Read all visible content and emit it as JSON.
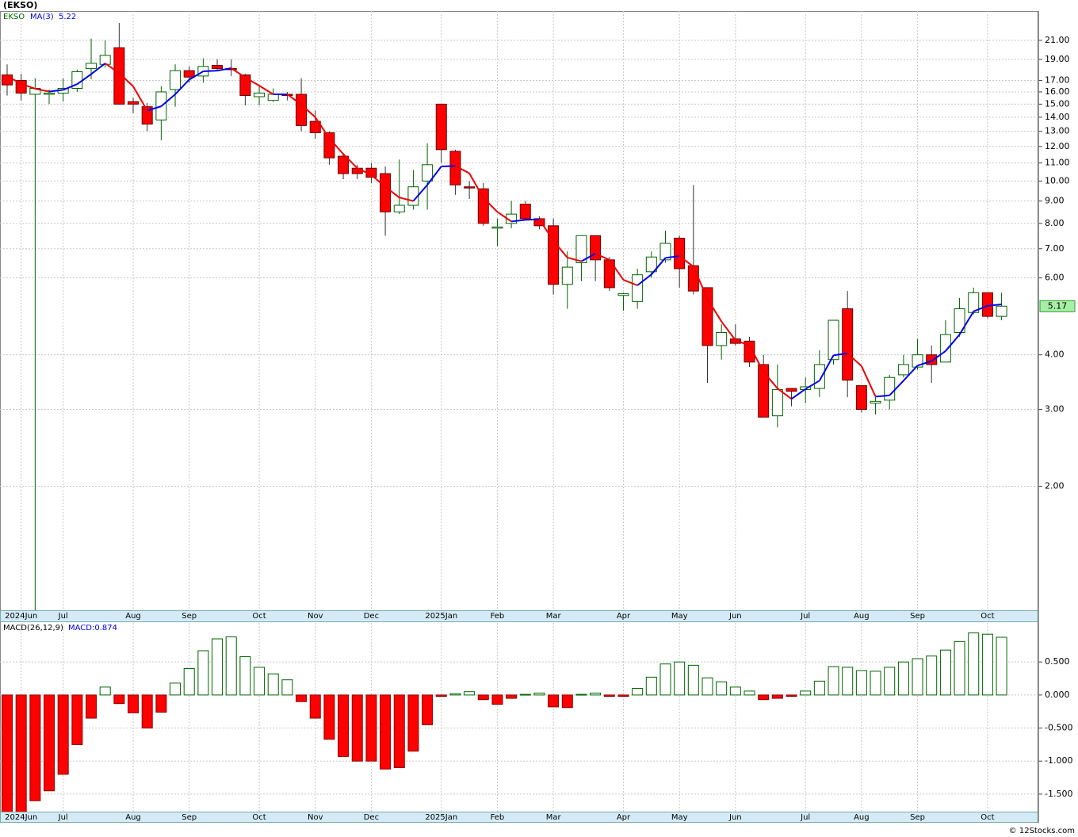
{
  "chart_data": [
    {
      "type": "candlestick",
      "title": "(EKSO)",
      "name": "EKSO",
      "categories": [
        null,
        "2024Jun",
        null,
        null,
        "Jul",
        null,
        null,
        null,
        null,
        "Aug",
        null,
        null,
        null,
        "Sep",
        null,
        null,
        null,
        null,
        "Oct",
        null,
        null,
        null,
        "Nov",
        null,
        null,
        null,
        "Dec",
        null,
        null,
        null,
        null,
        "2025Jan",
        null,
        null,
        null,
        "Feb",
        null,
        null,
        null,
        "Mar",
        null,
        null,
        null,
        null,
        "Apr",
        null,
        null,
        null,
        "May",
        null,
        null,
        null,
        "Jun",
        null,
        null,
        null,
        null,
        "Jul",
        null,
        null,
        null,
        "Aug",
        null,
        null,
        null,
        "Sep",
        null,
        null,
        null,
        null,
        "Oct",
        null
      ],
      "open": [
        17.5,
        17.0,
        15.8,
        15.8,
        15.9,
        16.3,
        18.1,
        18.5,
        20.2,
        15.2,
        14.8,
        13.8,
        16.2,
        17.9,
        17.4,
        18.4,
        18.1,
        17.5,
        15.6,
        15.3,
        15.8,
        15.8,
        13.7,
        12.9,
        11.4,
        10.7,
        10.7,
        10.4,
        8.5,
        8.8,
        10.0,
        15.0,
        11.7,
        9.7,
        9.6,
        7.8,
        8.0,
        8.85,
        8.2,
        7.9,
        5.8,
        6.5,
        7.5,
        6.6,
        5.47,
        5.3,
        6.2,
        6.6,
        7.4,
        6.4,
        5.7,
        4.2,
        4.35,
        4.3,
        3.8,
        2.9,
        3.35,
        3.33,
        3.35,
        3.9,
        5.1,
        3.4,
        3.1,
        3.15,
        3.6,
        3.75,
        4.0,
        3.85,
        4.5,
        5.0,
        5.55,
        4.9
      ],
      "high": [
        18.5,
        17.6,
        17.2,
        16.2,
        17.2,
        18.0,
        21.2,
        21.0,
        23.0,
        15.5,
        15.1,
        16.5,
        18.5,
        18.3,
        19.1,
        19.0,
        19.0,
        17.6,
        16.6,
        16.3,
        16.0,
        17.2,
        14.5,
        13.0,
        11.6,
        10.9,
        11.0,
        10.8,
        11.2,
        10.6,
        12.2,
        15.0,
        11.8,
        10.0,
        9.9,
        8.2,
        9.0,
        9.0,
        8.3,
        8.2,
        6.9,
        7.5,
        7.5,
        6.7,
        5.55,
        6.3,
        6.9,
        7.7,
        7.5,
        9.8,
        5.7,
        4.7,
        4.7,
        4.4,
        4.0,
        3.8,
        3.35,
        3.55,
        4.1,
        4.8,
        5.6,
        3.4,
        3.2,
        3.6,
        4.0,
        4.35,
        4.2,
        4.8,
        5.4,
        5.7,
        5.55,
        5.55
      ],
      "low": [
        15.7,
        15.3,
        1.04,
        15.0,
        15.2,
        16.0,
        17.1,
        18.2,
        15.0,
        14.3,
        13.0,
        12.4,
        14.8,
        16.8,
        16.8,
        18.0,
        17.4,
        14.9,
        14.9,
        15.2,
        15.3,
        13.0,
        12.5,
        10.9,
        10.1,
        10.1,
        9.9,
        7.5,
        8.4,
        8.6,
        8.6,
        11.0,
        9.3,
        9.1,
        7.9,
        7.1,
        7.8,
        8.2,
        7.75,
        5.5,
        5.1,
        5.9,
        5.9,
        5.6,
        5.05,
        5.1,
        6.0,
        6.5,
        5.7,
        5.5,
        3.45,
        3.9,
        4.2,
        3.75,
        2.88,
        2.73,
        3.05,
        3.1,
        3.2,
        3.8,
        3.2,
        2.95,
        2.92,
        3.0,
        3.55,
        3.7,
        3.45,
        3.85,
        4.4,
        4.95,
        4.85,
        4.8
      ],
      "close": [
        16.6,
        15.9,
        16.3,
        15.9,
        16.3,
        17.8,
        18.6,
        19.4,
        15.0,
        15.0,
        13.5,
        16.0,
        17.9,
        17.3,
        18.3,
        18.1,
        18.0,
        15.7,
        15.9,
        15.8,
        15.7,
        13.4,
        12.9,
        11.3,
        10.4,
        10.4,
        10.2,
        8.5,
        8.8,
        9.7,
        10.9,
        11.8,
        9.8,
        9.65,
        8.0,
        7.85,
        8.4,
        8.2,
        7.9,
        5.8,
        6.35,
        7.5,
        6.6,
        5.7,
        5.52,
        6.1,
        6.7,
        7.2,
        6.3,
        5.6,
        4.2,
        4.5,
        4.25,
        3.85,
        2.88,
        3.33,
        3.3,
        3.38,
        3.8,
        4.8,
        3.5,
        3.0,
        3.13,
        3.55,
        3.8,
        4.0,
        3.8,
        4.45,
        5.1,
        5.55,
        4.9,
        5.17
      ],
      "ma": {
        "name": "MA(3)",
        "up_color": "#0000ee",
        "down_color": "#ee0000",
        "values": [
          17.4,
          16.7,
          16.27,
          16.03,
          16.17,
          16.67,
          17.57,
          18.6,
          17.67,
          16.47,
          14.5,
          14.83,
          15.8,
          17.07,
          17.83,
          17.9,
          18.13,
          17.27,
          16.53,
          15.8,
          15.8,
          14.97,
          14.0,
          12.53,
          11.53,
          10.7,
          10.33,
          9.7,
          9.17,
          9.0,
          9.8,
          10.8,
          10.83,
          10.42,
          9.15,
          8.5,
          8.08,
          8.15,
          8.17,
          7.3,
          6.68,
          6.55,
          6.82,
          6.6,
          5.94,
          5.77,
          6.11,
          6.67,
          6.73,
          6.37,
          5.37,
          4.77,
          4.32,
          4.2,
          3.66,
          3.35,
          3.17,
          3.34,
          3.49,
          3.99,
          4.03,
          3.77,
          3.21,
          3.23,
          3.49,
          3.78,
          3.87,
          4.08,
          4.45,
          5.03,
          5.18,
          5.22
        ]
      },
      "up_color": "#006400",
      "down_color": "#ff0000",
      "log_scale": true,
      "grid": true,
      "ylim": [
        1.04,
        24.5
      ],
      "yticks": [
        {
          "value": 21,
          "label": "21.00"
        },
        {
          "value": 19,
          "label": "19.00"
        },
        {
          "value": 17,
          "label": "17.00"
        },
        {
          "value": 16,
          "label": "16.00"
        },
        {
          "value": 15,
          "label": "15.00"
        },
        {
          "value": 14,
          "label": "14.00"
        },
        {
          "value": 13,
          "label": "13.00"
        },
        {
          "value": 12,
          "label": "12.00"
        },
        {
          "value": 11,
          "label": "11.00"
        },
        {
          "value": 10,
          "label": "10.00"
        },
        {
          "value": 9,
          "label": "9.00"
        },
        {
          "value": 8,
          "label": "8.00"
        },
        {
          "value": 7,
          "label": "7.00"
        },
        {
          "value": 6,
          "label": "6.00"
        },
        {
          "value": 4,
          "label": "4.00"
        },
        {
          "value": 3,
          "label": "3.00"
        },
        {
          "value": 2,
          "label": "2.00"
        }
      ]
    },
    {
      "type": "bar",
      "title": "MACD(26,12,9)",
      "legend_label": "MACD:0.874",
      "categories": [
        null,
        "2024Jun",
        null,
        null,
        "Jul",
        null,
        null,
        null,
        null,
        "Aug",
        null,
        null,
        null,
        "Sep",
        null,
        null,
        null,
        null,
        "Oct",
        null,
        null,
        null,
        "Nov",
        null,
        null,
        null,
        "Dec",
        null,
        null,
        null,
        null,
        "2025Jan",
        null,
        null,
        null,
        "Feb",
        null,
        null,
        null,
        "Mar",
        null,
        null,
        null,
        null,
        "Apr",
        null,
        null,
        null,
        "May",
        null,
        null,
        null,
        "Jun",
        null,
        null,
        null,
        null,
        "Jul",
        null,
        null,
        null,
        "Aug",
        null,
        null,
        null,
        "Sep",
        null,
        null,
        null,
        null,
        "Oct",
        null
      ],
      "series": [
        {
          "name": "MACD",
          "up_color": "#006400",
          "down_color": "#ff0000",
          "values": [
            -1.85,
            -1.9,
            -1.6,
            -1.45,
            -1.2,
            -0.75,
            -0.35,
            0.12,
            -0.13,
            -0.27,
            -0.5,
            -0.26,
            0.18,
            0.4,
            0.67,
            0.85,
            0.88,
            0.58,
            0.42,
            0.32,
            0.23,
            -0.1,
            -0.35,
            -0.67,
            -0.93,
            -1.0,
            -1.0,
            -1.12,
            -1.1,
            -0.85,
            -0.45,
            -0.02,
            0.02,
            0.05,
            -0.07,
            -0.14,
            -0.05,
            0.01,
            0.03,
            -0.18,
            -0.19,
            0.01,
            0.03,
            -0.02,
            -0.02,
            0.1,
            0.27,
            0.47,
            0.5,
            0.45,
            0.26,
            0.2,
            0.12,
            0.06,
            -0.07,
            -0.05,
            -0.02,
            0.06,
            0.21,
            0.43,
            0.42,
            0.37,
            0.36,
            0.42,
            0.5,
            0.55,
            0.59,
            0.68,
            0.81,
            0.94,
            0.92,
            0.874
          ]
        }
      ],
      "grid": true,
      "ylim": [
        -1.765,
        1.09
      ],
      "yticks": [
        {
          "value": 0.5,
          "label": "0.500"
        },
        {
          "value": 0,
          "label": "0.000"
        },
        {
          "value": -0.5,
          "label": "-0.500"
        },
        {
          "value": -1,
          "label": "-1.000"
        },
        {
          "value": -1.5,
          "label": "-1.500"
        }
      ]
    }
  ],
  "footer": "© 12Stocks.com"
}
